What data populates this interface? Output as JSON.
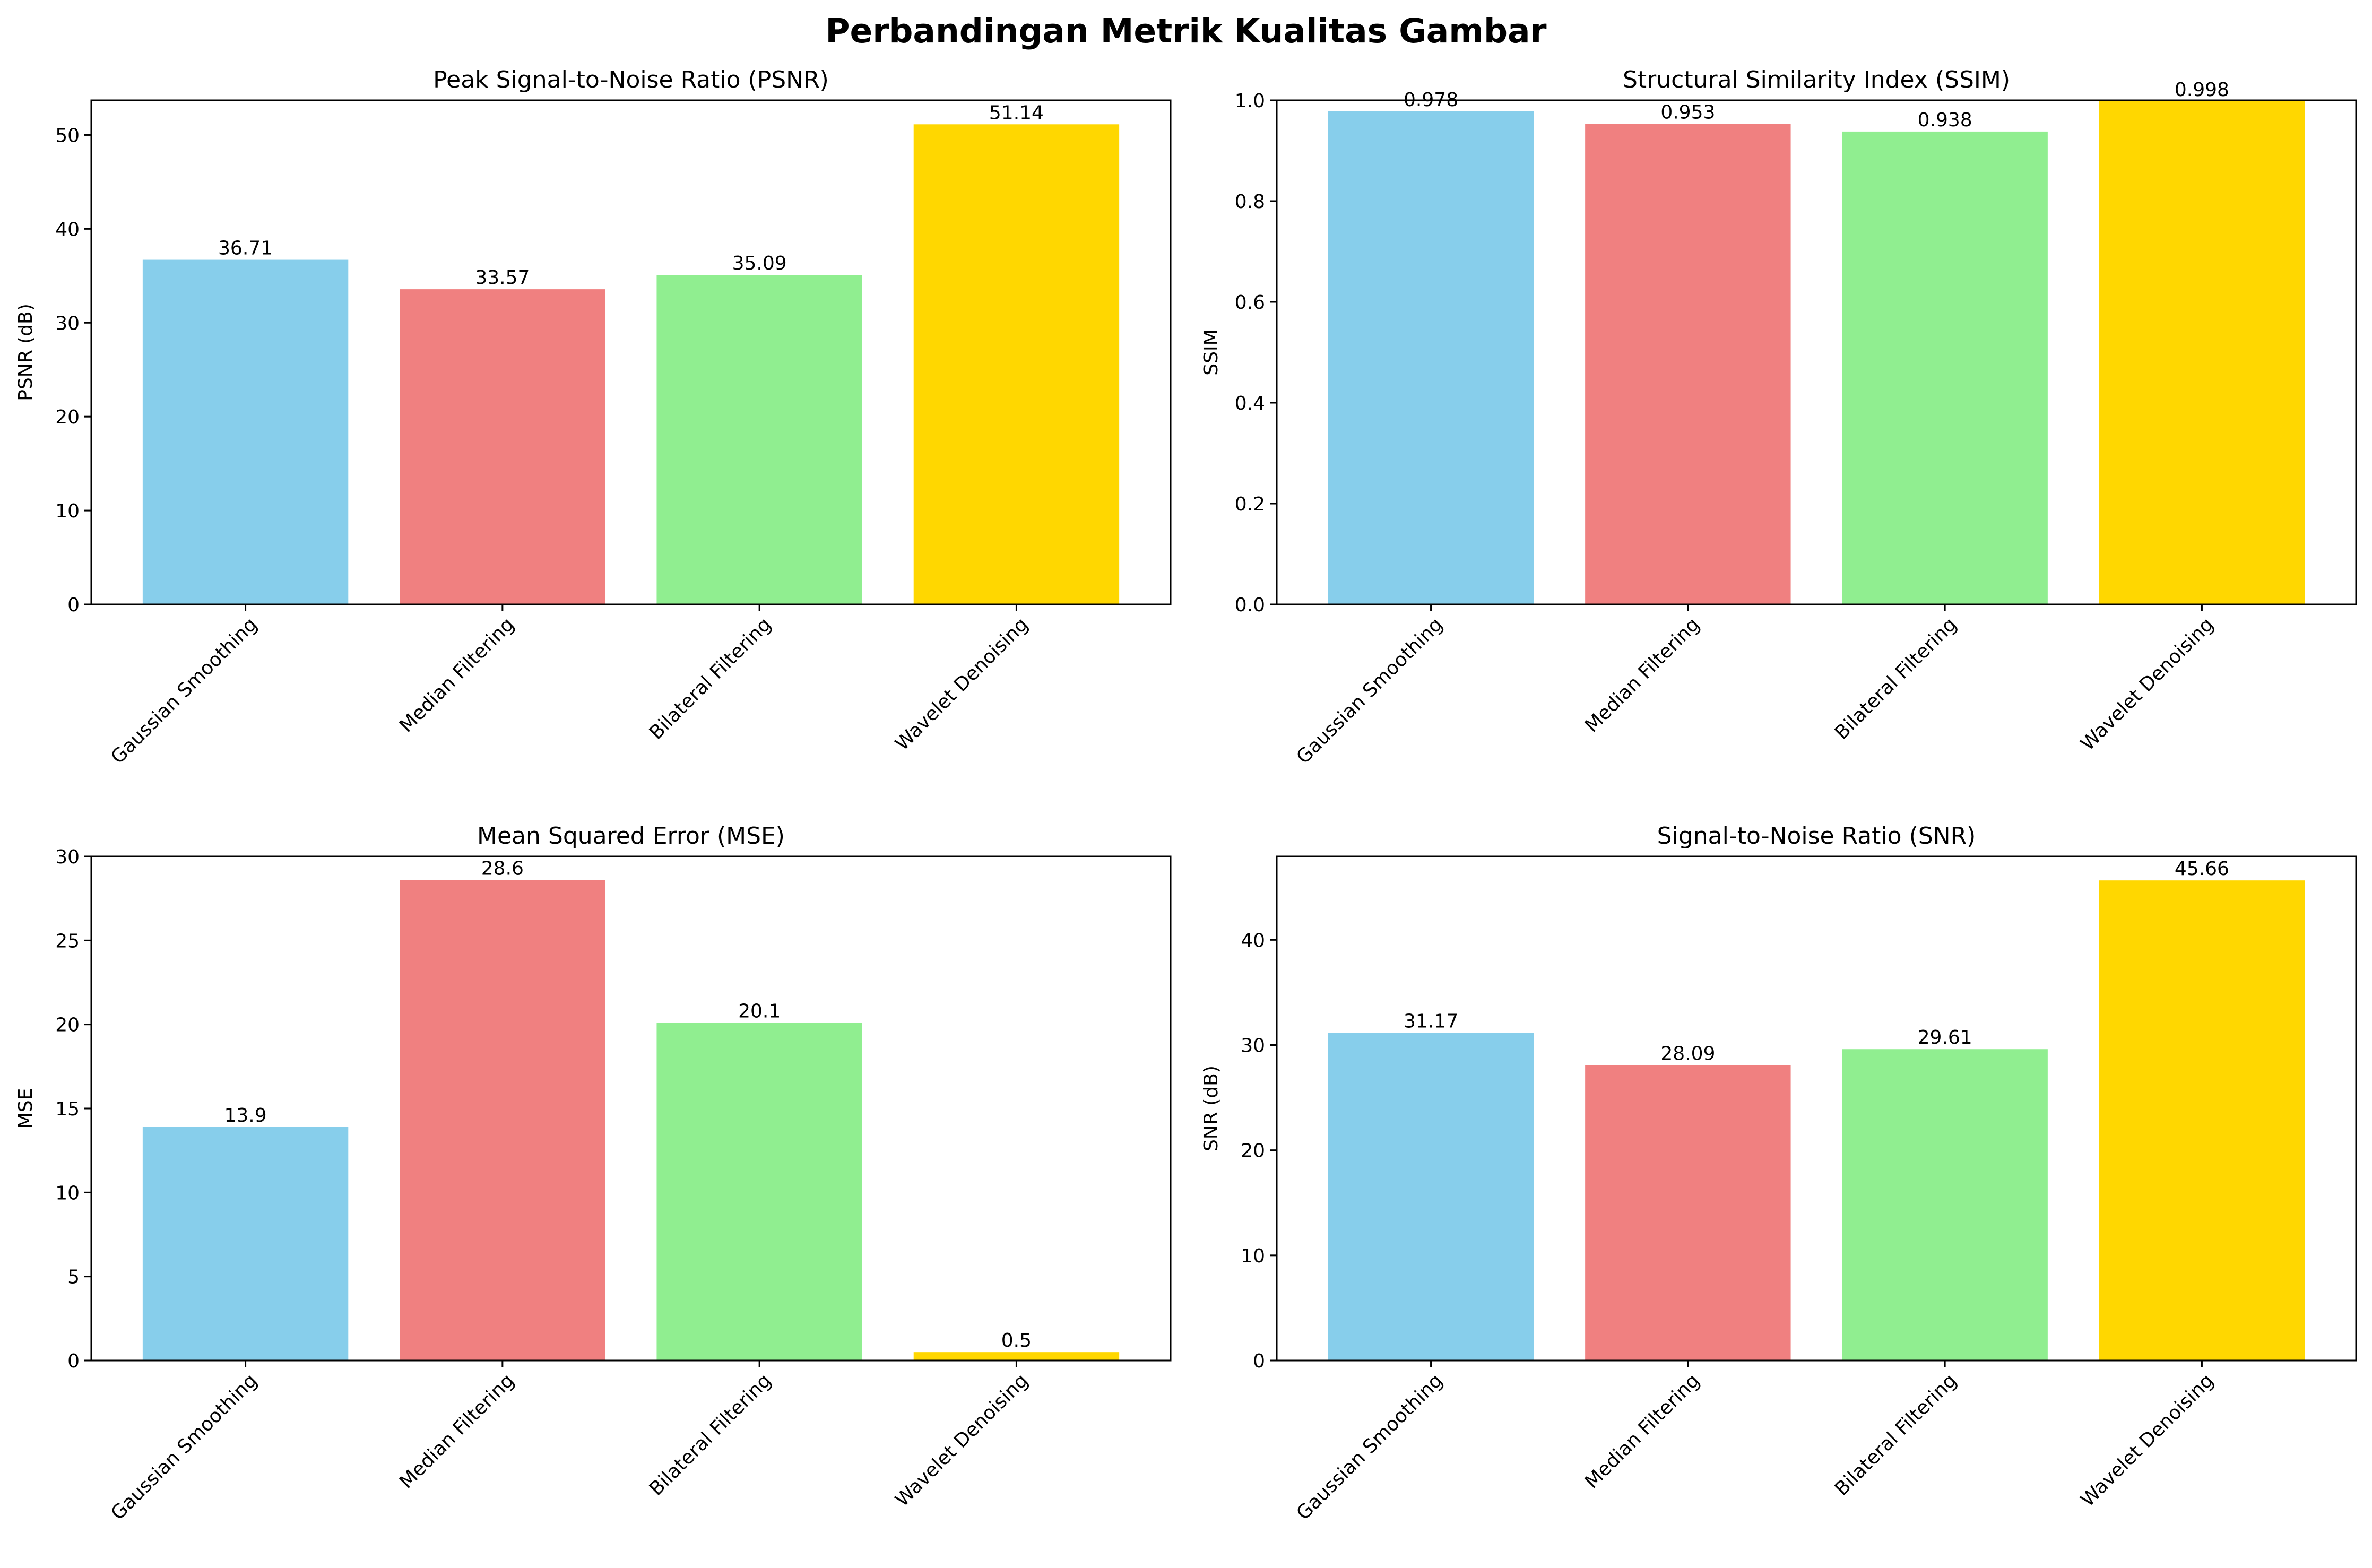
{
  "title": "Perbandingan Metrik Kualitas Gambar",
  "colors": [
    "#87CEEB",
    "#F08080",
    "#90EE90",
    "#FFD700"
  ],
  "chart_data": [
    {
      "type": "bar",
      "title": "Peak Signal-to-Noise Ratio (PSNR)",
      "ylabel": "PSNR (dB)",
      "categories": [
        "Gaussian Smoothing",
        "Median Filtering",
        "Bilateral Filtering",
        "Wavelet Denoising"
      ],
      "values": [
        36.71,
        33.57,
        35.09,
        51.14
      ],
      "value_labels": [
        "36.71",
        "33.57",
        "35.09",
        "51.14"
      ],
      "ylim": [
        0,
        53.7
      ],
      "yticks": [
        0,
        10,
        20,
        30,
        40,
        50
      ]
    },
    {
      "type": "bar",
      "title": "Structural Similarity Index (SSIM)",
      "ylabel": "SSIM",
      "categories": [
        "Gaussian Smoothing",
        "Median Filtering",
        "Bilateral Filtering",
        "Wavelet Denoising"
      ],
      "values": [
        0.978,
        0.953,
        0.938,
        0.998
      ],
      "value_labels": [
        "0.978",
        "0.953",
        "0.938",
        "0.998"
      ],
      "ylim": [
        0,
        1.0
      ],
      "yticks": [
        "0.0",
        "0.2",
        "0.4",
        "0.6",
        "0.8",
        "1.0"
      ]
    },
    {
      "type": "bar",
      "title": "Mean Squared Error (MSE)",
      "ylabel": "MSE",
      "categories": [
        "Gaussian Smoothing",
        "Median Filtering",
        "Bilateral Filtering",
        "Wavelet Denoising"
      ],
      "values": [
        13.9,
        28.6,
        20.1,
        0.5
      ],
      "value_labels": [
        "13.9",
        "28.6",
        "20.1",
        "0.5"
      ],
      "ylim": [
        0,
        30
      ],
      "yticks": [
        0,
        5,
        10,
        15,
        20,
        25,
        30
      ]
    },
    {
      "type": "bar",
      "title": "Signal-to-Noise Ratio (SNR)",
      "ylabel": "SNR (dB)",
      "categories": [
        "Gaussian Smoothing",
        "Median Filtering",
        "Bilateral Filtering",
        "Wavelet Denoising"
      ],
      "values": [
        31.17,
        28.09,
        29.61,
        45.66
      ],
      "value_labels": [
        "31.17",
        "28.09",
        "29.61",
        "45.66"
      ],
      "ylim": [
        0,
        47.94
      ],
      "yticks": [
        0,
        10,
        20,
        30,
        40
      ]
    }
  ]
}
